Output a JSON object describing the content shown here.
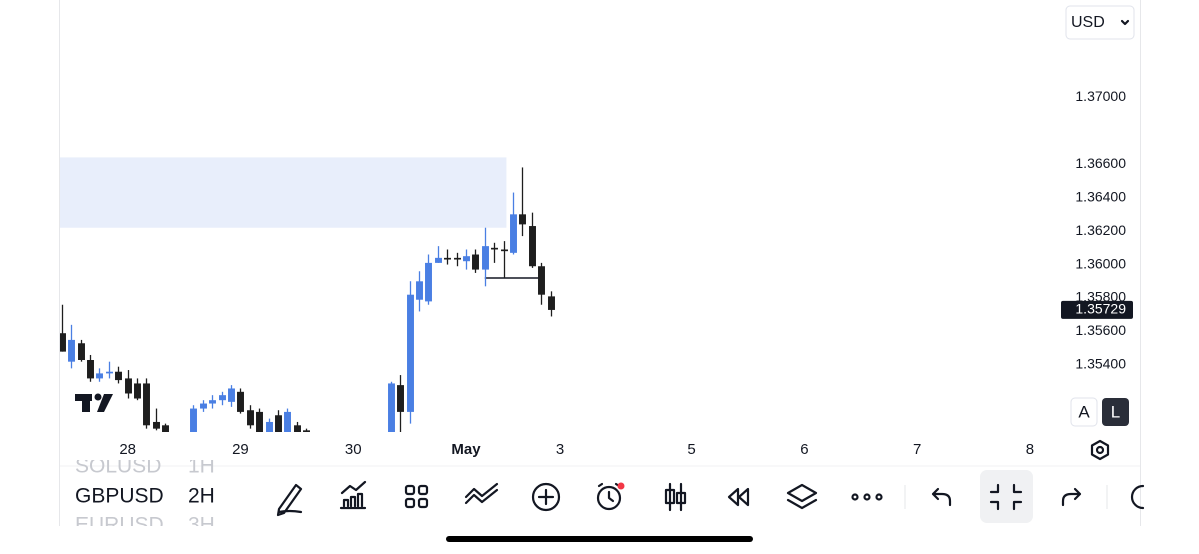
{
  "chart_data": {
    "type": "candlestick",
    "x": [
      0,
      1,
      2,
      3,
      4,
      5,
      6,
      7,
      8,
      9,
      10,
      11,
      14,
      15,
      16,
      17,
      18,
      19,
      20,
      21,
      22,
      23,
      24,
      25,
      26,
      35,
      36,
      37,
      38,
      39,
      40,
      41,
      42,
      43,
      44,
      45,
      46,
      47,
      48,
      49,
      50,
      51,
      52
    ],
    "open": [
      1.3559,
      1.3542,
      1.3553,
      1.3543,
      1.3532,
      1.3535,
      1.3536,
      1.3532,
      1.3529,
      1.3529,
      1.3506,
      1.3504,
      1.3498,
      1.3514,
      1.3517,
      1.3519,
      1.3518,
      1.3524,
      1.3513,
      1.3512,
      1.3498,
      1.351,
      1.3498,
      1.3504,
      1.3501,
      1.3495,
      1.3528,
      1.3512,
      1.3579,
      1.3578,
      1.3601,
      1.3604,
      1.3604,
      1.3602,
      1.3606,
      1.3597,
      1.361,
      1.3609,
      1.3607,
      1.363,
      1.3623,
      1.3599,
      1.3581
    ],
    "high": [
      1.3576,
      1.3564,
      1.3555,
      1.3546,
      1.3538,
      1.3542,
      1.3539,
      1.3537,
      1.3532,
      1.3532,
      1.3514,
      1.3505,
      1.3516,
      1.3519,
      1.3522,
      1.3524,
      1.3528,
      1.3526,
      1.3516,
      1.3514,
      1.3508,
      1.3513,
      1.3514,
      1.3506,
      1.3502,
      1.353,
      1.3534,
      1.359,
      1.3596,
      1.3606,
      1.3611,
      1.3609,
      1.3607,
      1.3609,
      1.3609,
      1.3622,
      1.3613,
      1.3614,
      1.3643,
      1.3658,
      1.3631,
      1.3601,
      1.3584
    ],
    "low": [
      1.3548,
      1.3538,
      1.3542,
      1.353,
      1.353,
      1.3532,
      1.3529,
      1.352,
      1.3519,
      1.3502,
      1.3501,
      1.3498,
      1.3495,
      1.3512,
      1.3514,
      1.3516,
      1.3515,
      1.3511,
      1.3502,
      1.3495,
      1.3495,
      1.3495,
      1.3495,
      1.3495,
      1.3495,
      1.349,
      1.349,
      1.3505,
      1.3572,
      1.3576,
      1.3601,
      1.36,
      1.3599,
      1.3597,
      1.3595,
      1.3587,
      1.3601,
      1.3592,
      1.3606,
      1.3617,
      1.3598,
      1.3576,
      1.3569
    ],
    "close": [
      1.3548,
      1.3555,
      1.3543,
      1.3532,
      1.3535,
      1.3536,
      1.3531,
      1.3523,
      1.352,
      1.3504,
      1.3502,
      1.35,
      1.3514,
      1.3517,
      1.3519,
      1.3522,
      1.3526,
      1.3512,
      1.3504,
      1.3498,
      1.3506,
      1.3498,
      1.3512,
      1.3498,
      1.3499,
      1.3529,
      1.3512,
      1.3582,
      1.359,
      1.3601,
      1.3604,
      1.3603,
      1.3603,
      1.3605,
      1.3597,
      1.3611,
      1.3609,
      1.3608,
      1.363,
      1.3624,
      1.3599,
      1.3582,
      1.35729
    ],
    "up_color": "#4a7fe3",
    "down_color": "#1e1e1e",
    "xlim": [
      -0.2,
      106.2
    ],
    "xticks": [
      {
        "value": 7,
        "label": "28"
      },
      {
        "value": 19,
        "label": "29"
      },
      {
        "value": 31,
        "label": "30"
      },
      {
        "value": 43,
        "label": "May"
      },
      {
        "value": 53,
        "label": "3"
      },
      {
        "value": 67,
        "label": "5"
      },
      {
        "value": 79,
        "label": "6"
      },
      {
        "value": 91,
        "label": "7"
      },
      {
        "value": 103,
        "label": "8"
      }
    ],
    "ylim": [
      1.35,
      1.3758
    ],
    "yticks": [
      {
        "value": 1.354,
        "label": "1.35400"
      },
      {
        "value": 1.356,
        "label": "1.35600"
      },
      {
        "value": 1.358,
        "label": "1.35800"
      },
      {
        "value": 1.36,
        "label": "1.36000"
      },
      {
        "value": 1.362,
        "label": "1.36200"
      },
      {
        "value": 1.364,
        "label": "1.36400"
      },
      {
        "value": 1.366,
        "label": "1.36600"
      },
      {
        "value": 1.37,
        "label": "1.37000"
      }
    ],
    "last_price": 1.35729,
    "zone": {
      "x": [
        -0.2,
        47.3
      ],
      "y": [
        1.3622,
        1.3664
      ],
      "color": "#e8eefb"
    },
    "level_line": {
      "x": [
        45,
        51
      ],
      "y": 1.3592
    }
  },
  "currency": "USD",
  "scale_buttons": [
    "A",
    "L"
  ],
  "symbols": [
    {
      "symbol": "SOLUSD",
      "interval": "1H"
    },
    {
      "symbol": "GBPUSD",
      "interval": "2H"
    },
    {
      "symbol": "EURUSD",
      "interval": "3H"
    }
  ]
}
